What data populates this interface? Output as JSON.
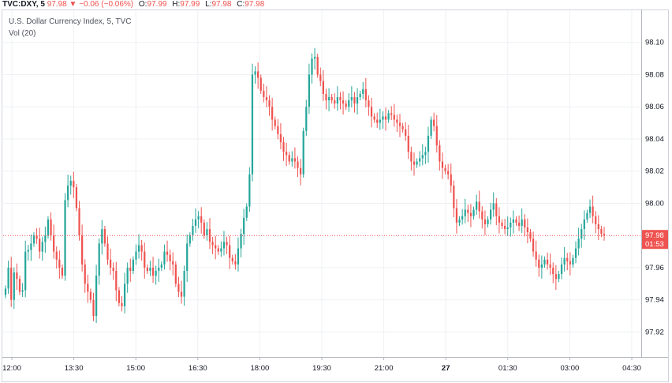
{
  "header": {
    "symbol": "TVC:DXY, 5",
    "last": "97.98",
    "arrow": "▼",
    "change": "−0.06 (−0.06%)",
    "o_label": "O:",
    "o": "97.99",
    "h_label": "H:",
    "h": "97.99",
    "l_label": "L:",
    "l": "97.98",
    "c_label": "C:",
    "c": "97.98"
  },
  "legend": {
    "title": "U.S. Dollar Currency Index, 5, TVC",
    "volume": "Vol (20)"
  },
  "colors": {
    "up": "#26a69a",
    "down": "#ef5350",
    "grid": "#eef0f3",
    "axis": "#b2b5be",
    "price_line": "#ef5350"
  },
  "chart_data": {
    "type": "candlestick",
    "title": "U.S. Dollar Currency Index, 5, TVC",
    "ylim": [
      97.905,
      98.12
    ],
    "y_ticks": [
      "98.10",
      "98.08",
      "98.06",
      "98.04",
      "98.02",
      "98.00",
      "97.96",
      "97.94",
      "97.92"
    ],
    "x_ticks": [
      "12:00",
      "13:30",
      "15:00",
      "16:30",
      "18:00",
      "19:30",
      "21:00",
      "27",
      "01:30",
      "03:00",
      "04:30"
    ],
    "current_price": "97.98",
    "countdown": "01:53",
    "closes": [
      97.947,
      97.96,
      97.94,
      97.957,
      97.953,
      97.945,
      97.946,
      97.97,
      97.971,
      97.975,
      97.98,
      97.978,
      97.97,
      97.976,
      97.98,
      97.99,
      97.98,
      97.97,
      97.965,
      97.96,
      97.955,
      98.002,
      98.011,
      98.014,
      98.01,
      97.997,
      97.98,
      97.962,
      97.95,
      97.945,
      97.94,
      97.93,
      97.955,
      97.975,
      97.984,
      97.975,
      97.965,
      97.96,
      97.958,
      97.946,
      97.938,
      97.936,
      97.95,
      97.96,
      97.958,
      97.965,
      97.97,
      97.974,
      97.97,
      97.96,
      97.958,
      97.96,
      97.955,
      97.958,
      97.96,
      97.962,
      97.97,
      97.968,
      97.964,
      97.962,
      97.95,
      97.945,
      97.942,
      97.958,
      97.975,
      97.98,
      97.986,
      97.99,
      97.992,
      97.988,
      97.98,
      97.984,
      97.976,
      97.974,
      97.972,
      97.97,
      97.972,
      97.976,
      97.974,
      97.966,
      97.964,
      97.962,
      97.972,
      97.981,
      97.991,
      97.998,
      98.018,
      98.08,
      98.082,
      98.078,
      98.07,
      98.066,
      98.064,
      98.06,
      98.052,
      98.048,
      98.043,
      98.038,
      98.032,
      98.03,
      98.026,
      98.028,
      98.026,
      98.022,
      98.018,
      98.045,
      98.06,
      98.08,
      98.09,
      98.091,
      98.08,
      98.076,
      98.068,
      98.064,
      98.066,
      98.064,
      98.062,
      98.066,
      98.064,
      98.062,
      98.06,
      98.064,
      98.066,
      98.062,
      98.066,
      98.068,
      98.071,
      98.064,
      98.06,
      98.054,
      98.052,
      98.05,
      98.052,
      98.054,
      98.052,
      98.056,
      98.055,
      98.052,
      98.05,
      98.048,
      98.046,
      98.042,
      98.032,
      98.026,
      98.024,
      98.026,
      98.028,
      98.03,
      98.032,
      98.042,
      98.052,
      98.048,
      98.036,
      98.026,
      98.022,
      98.02,
      98.018,
      98.011,
      97.997,
      97.988,
      97.99,
      97.992,
      97.996,
      97.994,
      97.992,
      97.996,
      98.001,
      97.995,
      97.99,
      97.987,
      97.99,
      97.996,
      98.0,
      97.992,
      97.988,
      97.986,
      97.984,
      97.985,
      97.988,
      97.99,
      97.988,
      97.986,
      97.99,
      97.985,
      97.982,
      97.978,
      97.97,
      97.965,
      97.96,
      97.962,
      97.965,
      97.962,
      97.96,
      97.956,
      97.953,
      97.956,
      97.962,
      97.966,
      97.964,
      97.962,
      97.966,
      97.972,
      97.978,
      97.984,
      97.99,
      97.994,
      97.998,
      97.992,
      97.987,
      97.984,
      97.981,
      97.98
    ]
  }
}
